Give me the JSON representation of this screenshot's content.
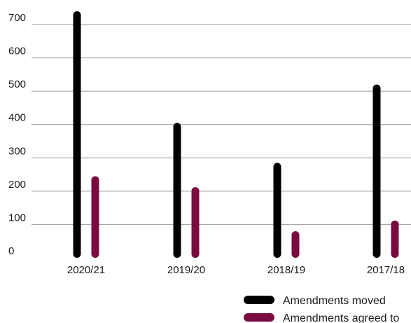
{
  "chart_data": {
    "type": "bar",
    "categories": [
      "2020/21",
      "2019/20",
      "2018/19",
      "2017/18"
    ],
    "series": [
      {
        "name": "Amendments moved",
        "values": [
          740,
          405,
          285,
          520
        ],
        "color": "#000000"
      },
      {
        "name": "Amendments agreed to",
        "values": [
          245,
          212,
          80,
          112
        ],
        "color": "#7a0a3f"
      }
    ],
    "yticks": [
      0,
      100,
      200,
      300,
      400,
      500,
      600,
      700
    ],
    "ylim": [
      0,
      700
    ],
    "grid": true,
    "legend_position": "bottom-right"
  }
}
